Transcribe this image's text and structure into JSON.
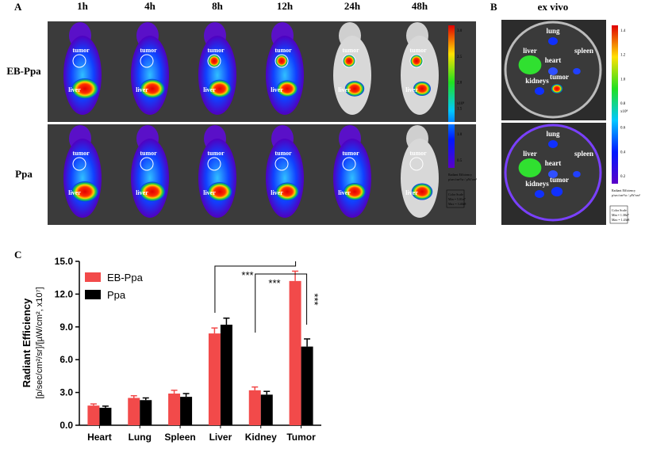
{
  "panel_a": {
    "letter": "A",
    "times": [
      "1h",
      "4h",
      "8h",
      "12h",
      "24h",
      "48h"
    ],
    "rows": [
      {
        "label": "EB-Ppa",
        "marks": [
          [
            "tumor",
            "liver"
          ],
          [
            "tumor",
            "liver"
          ],
          [
            "tumor",
            "liver"
          ],
          [
            "tumor",
            "liver"
          ],
          [
            "tumor",
            "liver"
          ],
          [
            "tumor",
            "liver"
          ]
        ]
      },
      {
        "label": "Ppa",
        "marks": [
          [
            "tumor",
            "liver"
          ],
          [
            "tumor",
            "liver"
          ],
          [
            "tumor",
            "liver"
          ],
          [
            "tumor",
            "liver"
          ],
          [
            "tumor",
            "liver"
          ],
          [
            "tumor",
            "liver"
          ]
        ]
      }
    ],
    "colorbar": {
      "ticks": [
        "3.0",
        "2.5",
        "2.0",
        "1.5",
        "1.0",
        "0.5"
      ],
      "unit": "x10⁸",
      "title": "Radiant Efficiency",
      "units": "p/sec/cm²/sr / µW/cm²",
      "scale": "Color Scale",
      "min": "Min = 5.01e7",
      "max": "Max = 3.40e8"
    }
  },
  "panel_b": {
    "letter": "B",
    "title": "ex vivo",
    "organs": [
      "lung",
      "liver",
      "heart",
      "spleen",
      "kidneys",
      "tumor"
    ],
    "colorbar": {
      "ticks": [
        "1.4",
        "1.2",
        "1.0",
        "0.8",
        "0.6",
        "0.4",
        "0.2"
      ],
      "unit": "x10⁸",
      "title": "Radiant Efficiency",
      "units": "p/sec/cm²/sr / µW/cm²",
      "scale": "Color Scale",
      "min": "Min = 1.38e7",
      "max": "Max = 1.43e8"
    }
  },
  "chart_data": {
    "type": "bar",
    "letter": "C",
    "y_label": "Radiant Efficiency",
    "y_label_units": "[p/sec/cm²/sr]/[µW/cm², x10⁷]",
    "categories": [
      "Heart",
      "Lung",
      "Spleen",
      "Liver",
      "Kidney",
      "Tumor"
    ],
    "series": [
      {
        "name": "EB-Ppa",
        "color": "#f24a4a",
        "values": [
          1.8,
          2.5,
          2.9,
          8.4,
          3.2,
          13.2
        ],
        "errors": [
          0.15,
          0.2,
          0.3,
          0.5,
          0.3,
          0.9
        ]
      },
      {
        "name": "Ppa",
        "color": "#000000",
        "values": [
          1.6,
          2.3,
          2.6,
          9.2,
          2.8,
          7.2
        ],
        "errors": [
          0.15,
          0.2,
          0.3,
          0.6,
          0.3,
          0.7
        ]
      }
    ],
    "ylim": [
      0,
      15
    ],
    "yticks": [
      {
        "value": 0,
        "label": "0.0"
      },
      {
        "value": 3,
        "label": "3.0"
      },
      {
        "value": 6,
        "label": "6.0"
      },
      {
        "value": 9,
        "label": "9.0"
      },
      {
        "value": 12,
        "label": "12.0"
      },
      {
        "value": 15,
        "label": "15.0"
      }
    ],
    "annotations": [
      "***",
      "***",
      "***"
    ],
    "legend": "upper left"
  }
}
